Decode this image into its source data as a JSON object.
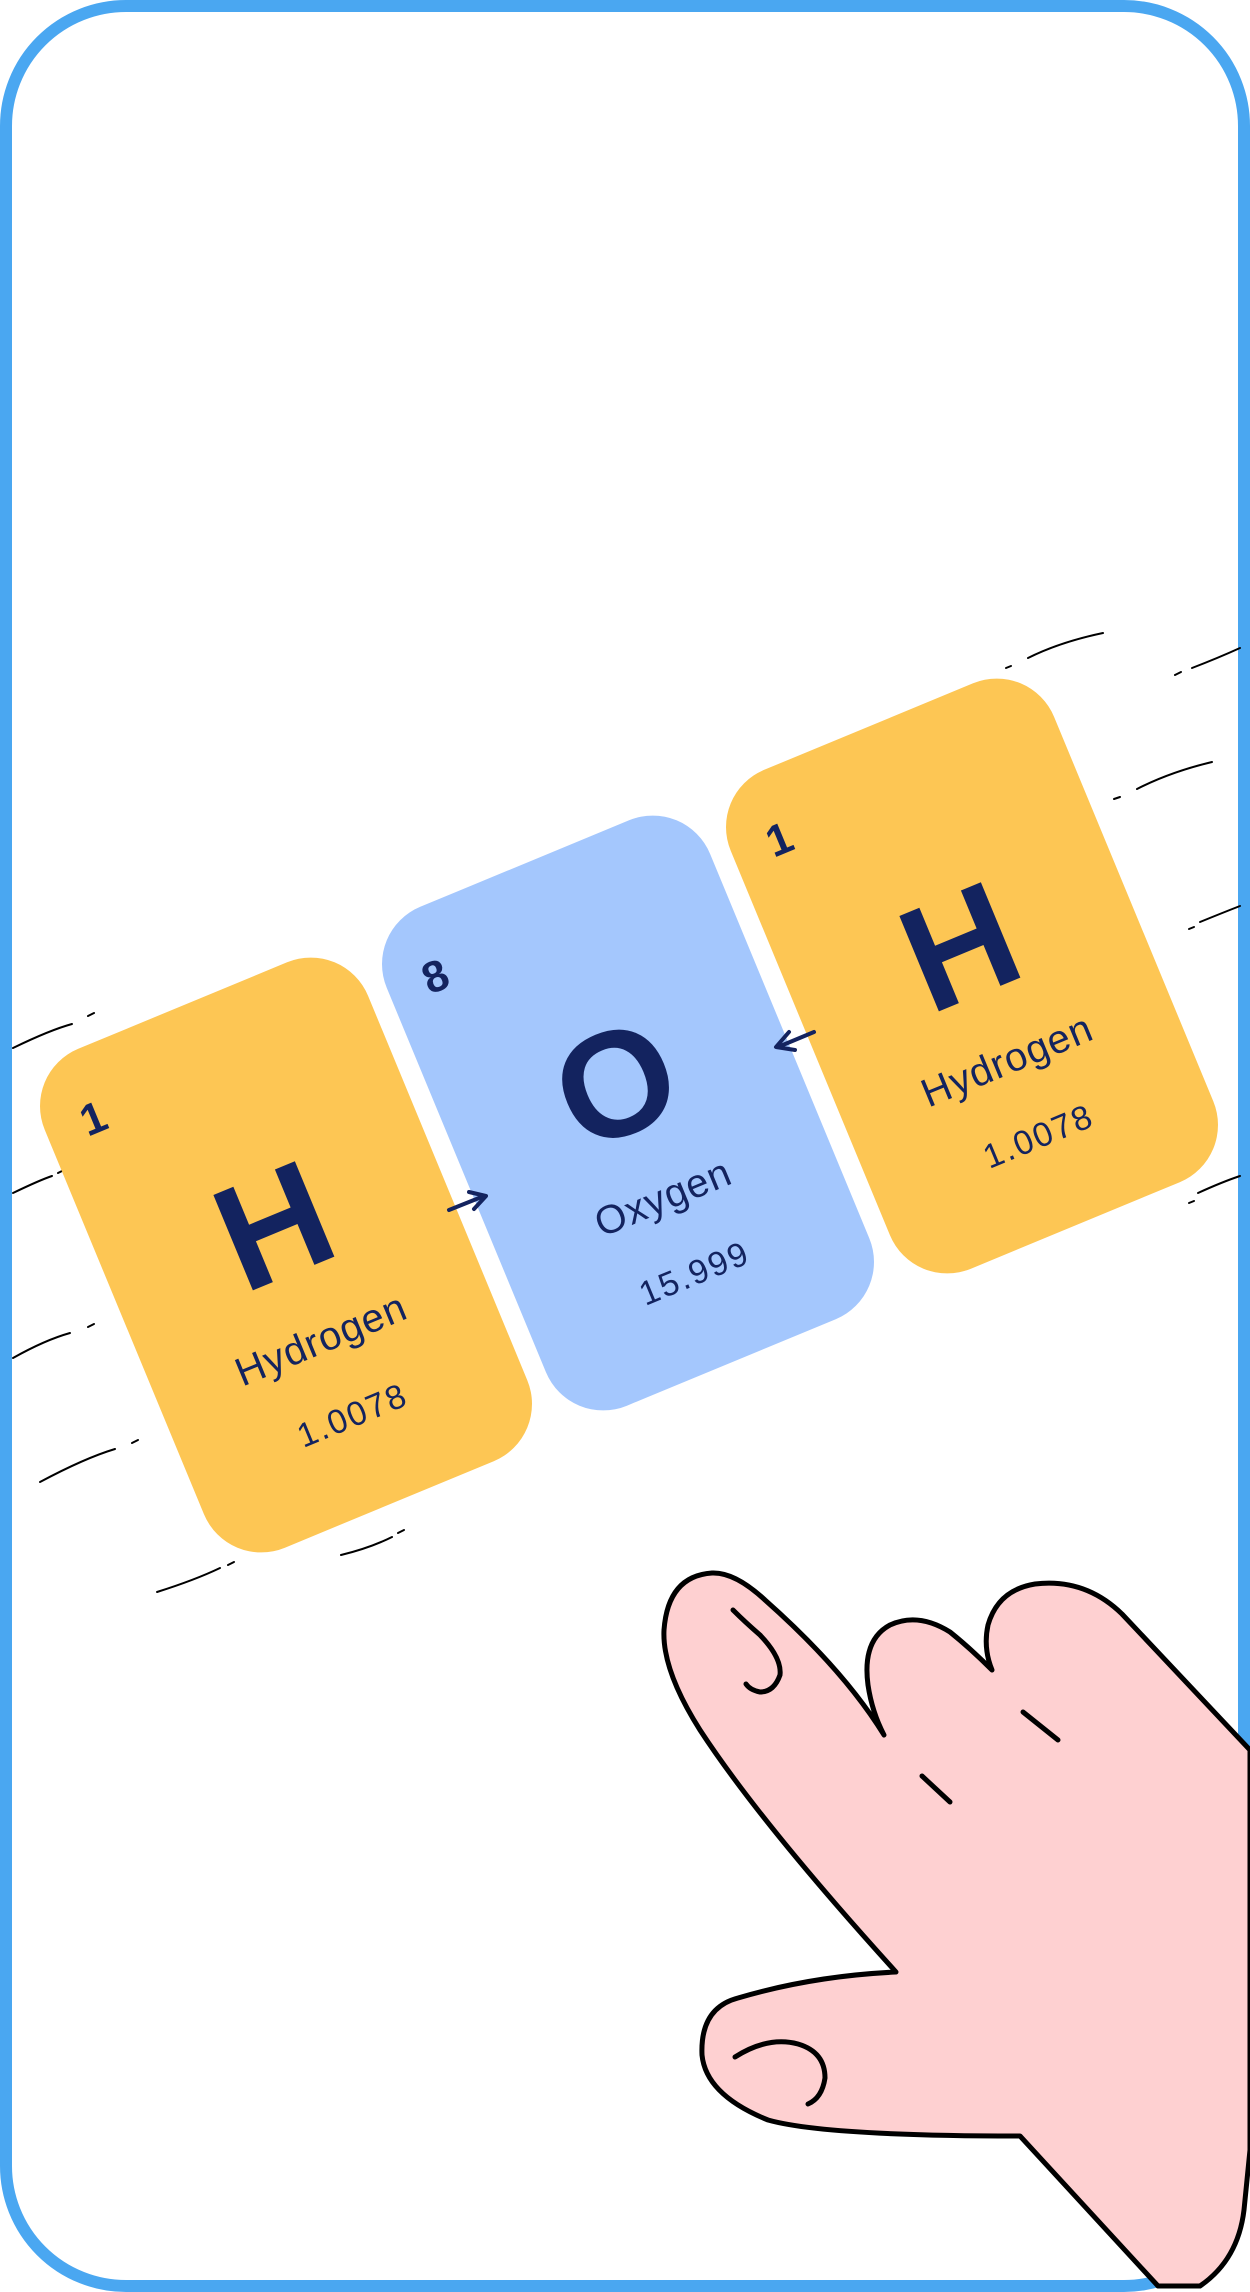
{
  "colors": {
    "frame": "#4aa7f1",
    "hydrogen_card": "#fdc654",
    "oxygen_card": "#a4c7fd",
    "text": "#13235f",
    "hand": "#fed0d1",
    "hand_outline": "#000000"
  },
  "cards": [
    {
      "number": "1",
      "symbol": "H",
      "name": "Hydrogen",
      "mass": "1.0078"
    },
    {
      "number": "8",
      "symbol": "O",
      "name": "Oxygen",
      "mass": "15.999"
    },
    {
      "number": "1",
      "symbol": "H",
      "name": "Hydrogen",
      "mass": "1.0078"
    }
  ],
  "icons": [
    "arrow-right-icon",
    "arrow-left-icon",
    "pointing-hand-illustration"
  ]
}
